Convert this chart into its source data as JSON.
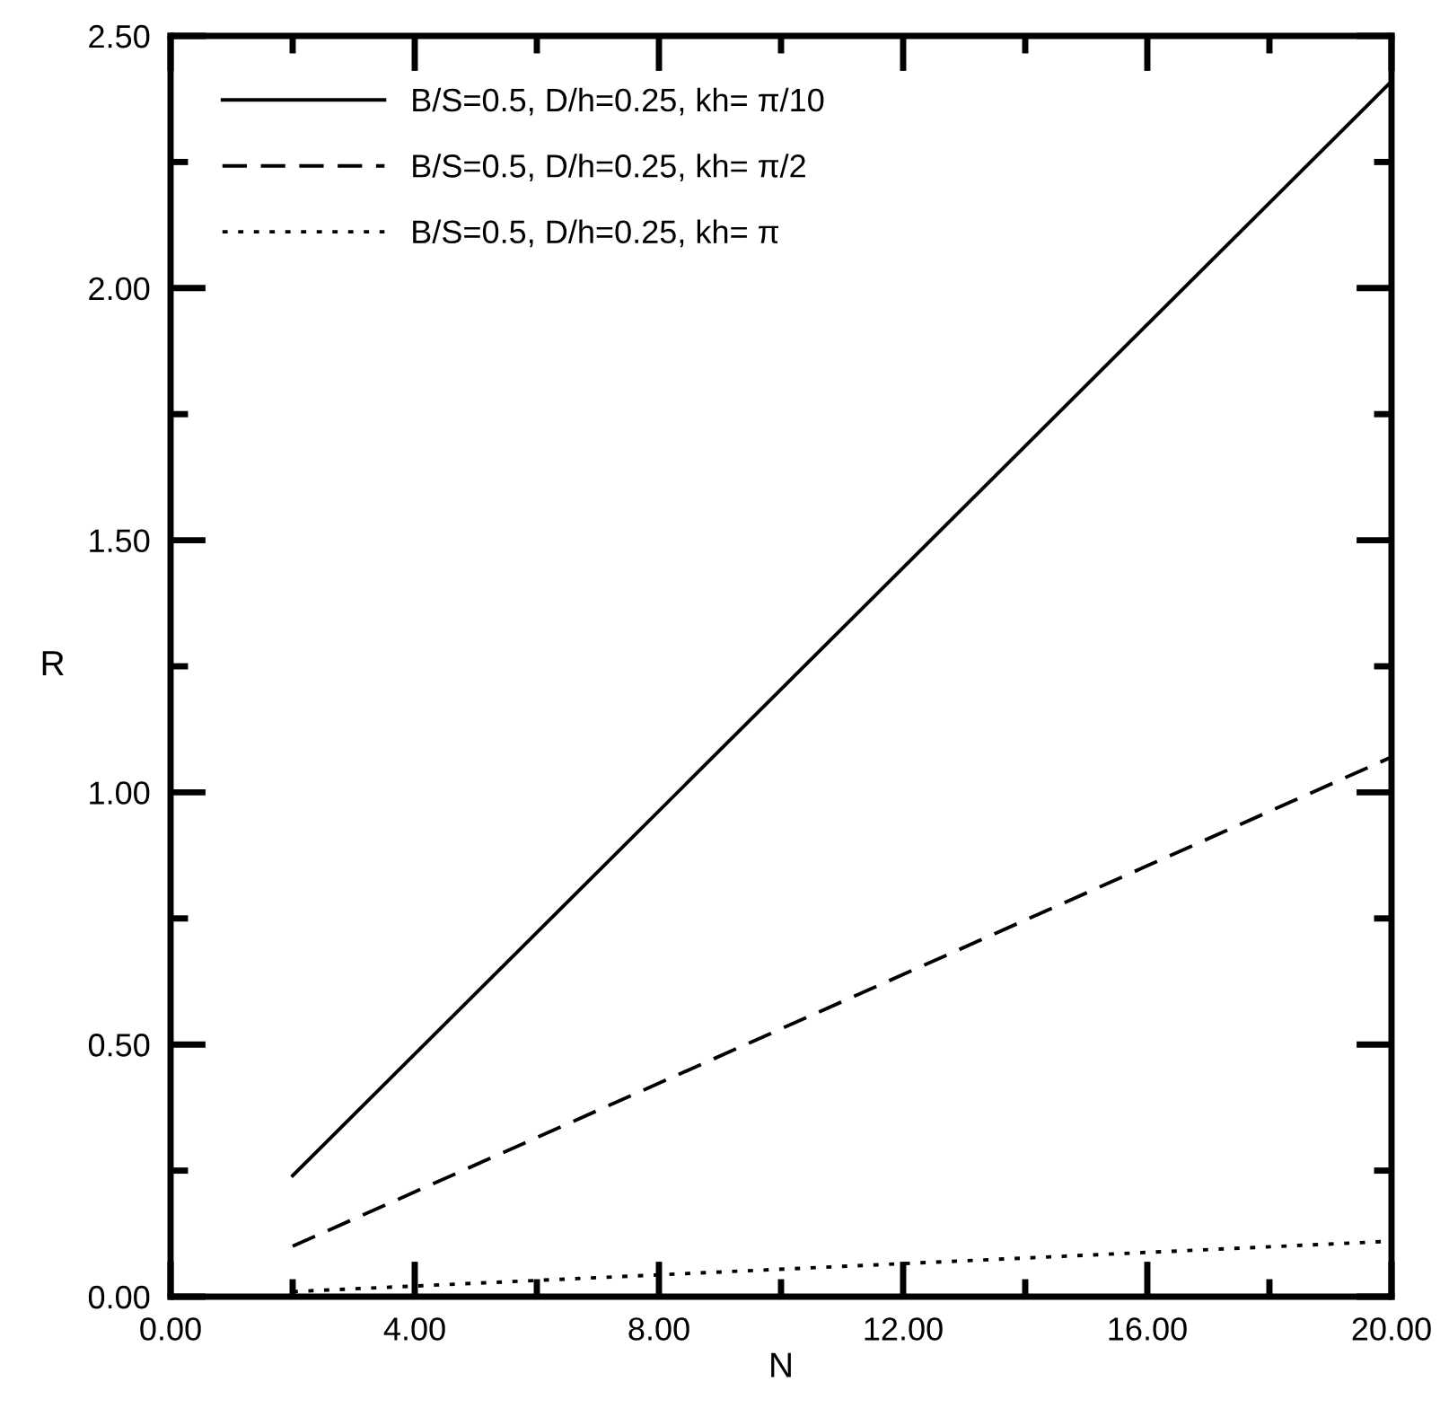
{
  "chart_data": {
    "type": "line",
    "xlabel": "N",
    "ylabel": "R",
    "xlim": [
      0,
      20
    ],
    "ylim": [
      0,
      2.5
    ],
    "xticks": [
      {
        "value": 0,
        "label": "0.00"
      },
      {
        "value": 2,
        "label": null
      },
      {
        "value": 4,
        "label": "4.00"
      },
      {
        "value": 6,
        "label": null
      },
      {
        "value": 8,
        "label": "8.00"
      },
      {
        "value": 10,
        "label": null
      },
      {
        "value": 12,
        "label": "12.00"
      },
      {
        "value": 14,
        "label": null
      },
      {
        "value": 16,
        "label": "16.00"
      },
      {
        "value": 18,
        "label": null
      },
      {
        "value": 20,
        "label": "20.00"
      }
    ],
    "yticks": [
      {
        "value": 0,
        "label": "0.00"
      },
      {
        "value": 0.25,
        "label": null
      },
      {
        "value": 0.5,
        "label": "0.50"
      },
      {
        "value": 0.75,
        "label": null
      },
      {
        "value": 1.0,
        "label": "1.00"
      },
      {
        "value": 1.25,
        "label": null
      },
      {
        "value": 1.5,
        "label": "1.50"
      },
      {
        "value": 1.75,
        "label": null
      },
      {
        "value": 2.0,
        "label": "2.00"
      },
      {
        "value": 2.25,
        "label": null
      },
      {
        "value": 2.5,
        "label": "2.50"
      }
    ],
    "grid": false,
    "legend": "top left",
    "marker": "none",
    "x": [
      2,
      20
    ],
    "series": [
      {
        "name": "B/S=0.5, D/h=0.25, kh= π/10",
        "color": "#000000",
        "line_style": "solid",
        "values": [
          0.24,
          2.41
        ]
      },
      {
        "name": "B/S=0.5, D/h=0.25, kh= π/2",
        "color": "#000000",
        "line_style": "dashed",
        "values": [
          0.1,
          1.07
        ]
      },
      {
        "name": "B/S=0.5, D/h=0.25, kh= π",
        "color": "#000000",
        "line_style": "dotted",
        "values": [
          0.01,
          0.11
        ]
      }
    ]
  }
}
